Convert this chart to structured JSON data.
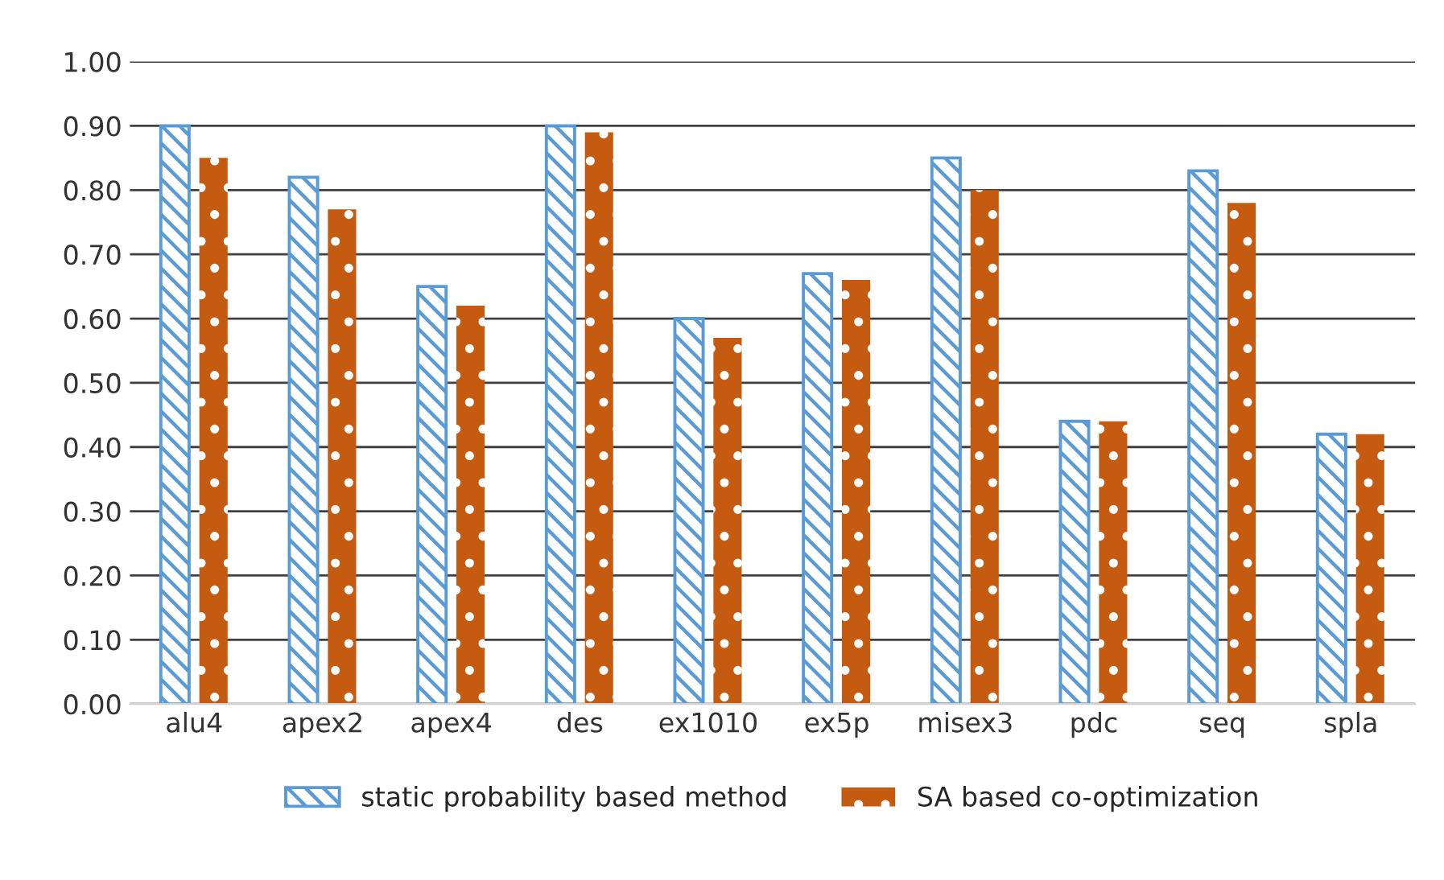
{
  "chart_data": {
    "type": "bar",
    "categories": [
      "alu4",
      "apex2",
      "apex4",
      "des",
      "ex1010",
      "ex5p",
      "misex3",
      "pdc",
      "seq",
      "spla"
    ],
    "series": [
      {
        "name": "static probability based method",
        "color": "#5b9bd5",
        "values": [
          0.9,
          0.82,
          0.65,
          0.9,
          0.6,
          0.67,
          0.85,
          0.44,
          0.83,
          0.42
        ]
      },
      {
        "name": "SA based co-optimization",
        "color": "#c55a11",
        "values": [
          0.85,
          0.77,
          0.62,
          0.89,
          0.57,
          0.66,
          0.8,
          0.44,
          0.78,
          0.42
        ]
      }
    ],
    "ylim": [
      0,
      1.0
    ],
    "yticks": [
      {
        "value": 0,
        "label": "0.00"
      },
      {
        "value": 0.1,
        "label": "0.10"
      },
      {
        "value": 0.2,
        "label": "0.20"
      },
      {
        "value": 0.3,
        "label": "0.30"
      },
      {
        "value": 0.4,
        "label": "0.40"
      },
      {
        "value": 0.5,
        "label": "0.50"
      },
      {
        "value": 0.6,
        "label": "0.60"
      },
      {
        "value": 0.7,
        "label": "0.70"
      },
      {
        "value": 0.8,
        "label": "0.80"
      },
      {
        "value": 0.9,
        "label": "0.90"
      },
      {
        "value": 1.0,
        "label": "1.00"
      }
    ],
    "grid": "y",
    "legend": "bottom"
  }
}
